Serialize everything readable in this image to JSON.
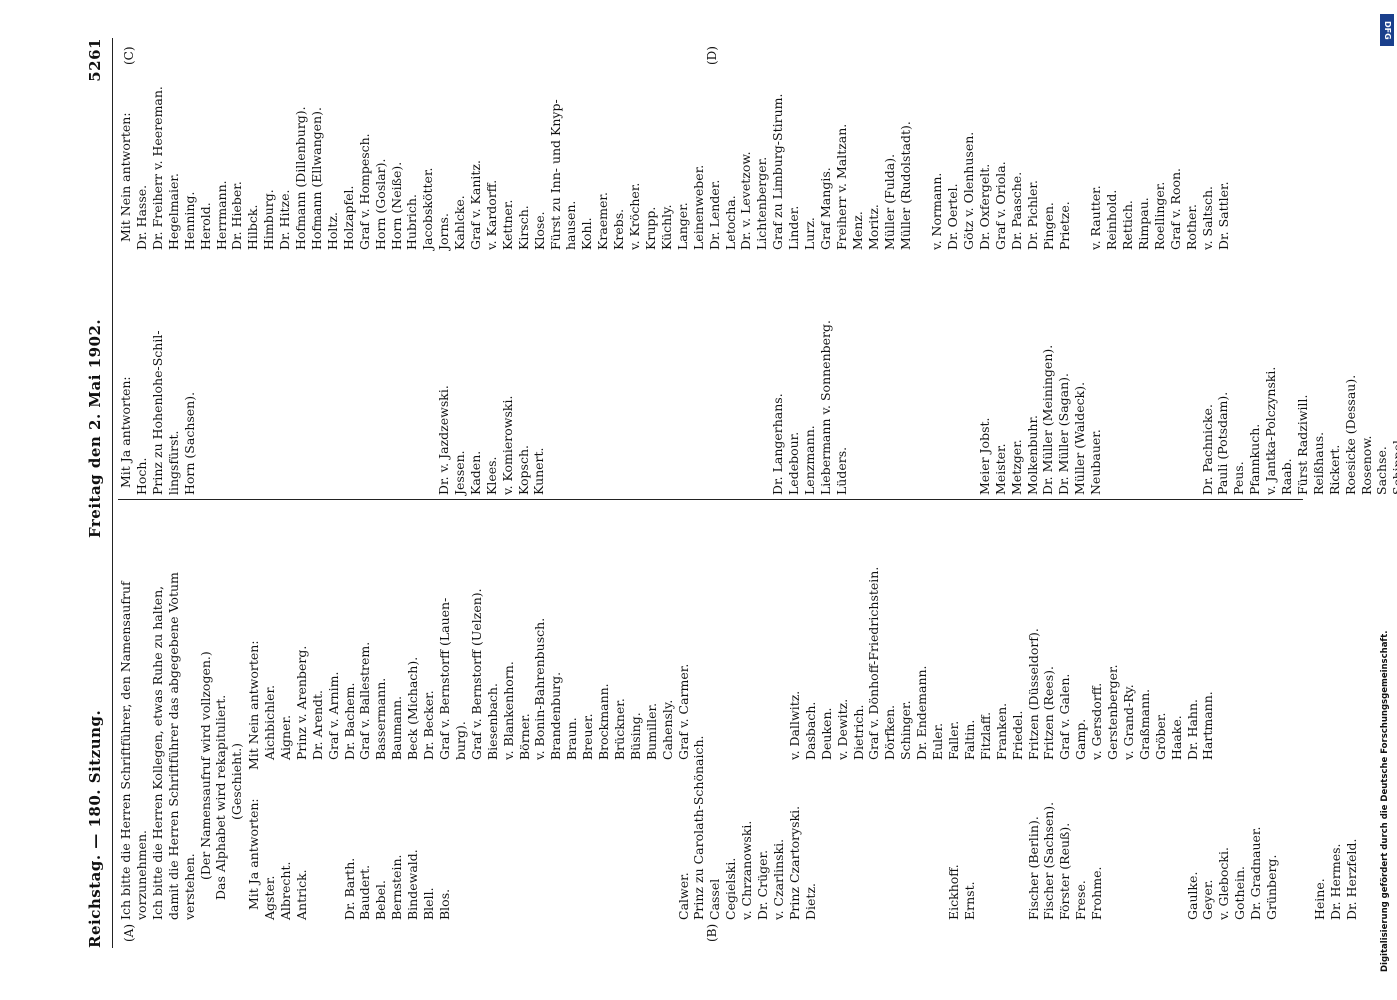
{
  "header": {
    "left": "Reichstag. — 180. Sitzung.",
    "middle": "Freitag den 2. Mai 1902.",
    "page_number": "5261"
  },
  "margin_marks": {
    "a": "(A)",
    "b": "(B)",
    "c": "(C)",
    "d": "(D)"
  },
  "col1": {
    "intro": [
      "Ich bitte die Herren Schriftführer, den Namensaufruf",
      "vorzunehmen.",
      "Ich bitte die Herren Kollegen, etwas Ruhe zu halten,",
      "damit die Herren Schriftführer das abgegebene Votum",
      "verstehen.",
      "(Der Namensaufruf wird vollzogen.)",
      "Das Alphabet wird rekapituliert.",
      "(Geschieht.)"
    ],
    "ja_heading": "Mit Ja antworten:",
    "nein_heading": "Mit Nein antworten:",
    "ja": [
      "Agster.",
      "Albrecht.",
      "Antrick.",
      "",
      "",
      "Dr. Barth.",
      "Baudert.",
      "Bebel.",
      "Bernstein.",
      "Bindewald.",
      "Blell.",
      "Blos.",
      "",
      "",
      "",
      "",
      "",
      "",
      "",
      "",
      "",
      "",
      "",
      "",
      "",
      "",
      "Calwer.",
      "Prinz zu Carolath-Schönaich.",
      "Cassel",
      "Cegielski.",
      "v. Chrzanowski.",
      "Dr. Crüger.",
      "v. Czarlinski.",
      "Prinz Czartoryski.",
      "Dietz.",
      "",
      "",
      "",
      "",
      "",
      "",
      "",
      "",
      "Eickhoff.",
      "Ernst.",
      "",
      "",
      "",
      "Fischer (Berlin).",
      "Fischer (Sachsen).",
      "Förster (Reuß).",
      "Frese.",
      "Frohme.",
      "",
      "",
      "",
      "",
      "",
      "Gaulke.",
      "Geyer.",
      "v. Glebocki.",
      "Gothein.",
      "Dr. Gradnauer.",
      "Grünberg.",
      "",
      "",
      "Heine.",
      "Dr. Hermes.",
      "Dr. Herzfeld."
    ],
    "nein": [
      "Aichbichler.",
      "Aigner.",
      "Prinz v. Arenberg.",
      "Dr. Arendt.",
      "Graf v. Arnim.",
      "Dr. Bachem.",
      "Graf v. Ballestrem.",
      "Bassermann.",
      "Baumann.",
      "Beck (Michach).",
      "Dr. Becker.",
      "Graf v. Bernstorff (Lauen-",
      "burg).",
      "Graf v. Bernstorff (Uelzen).",
      "Biesenbach.",
      "v. Blankenhorn.",
      "Börner.",
      "v. Bonin-Bahrenbusch.",
      "Brandenburg.",
      "Braun.",
      "Breuer.",
      "Brockmann.",
      "Brückner.",
      "Büsing.",
      "Bumiller.",
      "Cahensly.",
      "Graf v. Carmer.",
      "",
      "",
      "",
      "",
      "",
      "",
      "v. Dallwitz.",
      "Dasbach.",
      "Deuken.",
      "v. Dewitz.",
      "Dietrich.",
      "Graf v. Dönhoff-Friedrichstein.",
      "Dörfken.",
      "Schinger.",
      "Dr. Endemann.",
      "Euler.",
      "Faller.",
      "Faltin.",
      "Fitzlaff.",
      "Franken.",
      "Friedel.",
      "Fritzen (Düsseldorf).",
      "Fritzen (Rees).",
      "Graf v. Galen.",
      "Gamp.",
      "v. Gersdorff.",
      "Gerstenberger.",
      "v. Grand-Ry.",
      "Graßmann.",
      "Gröber.",
      "Haake.",
      "Dr. Hahn.",
      "Hartmann."
    ]
  },
  "col2": {
    "ja_heading": "Mit Ja antworten:",
    "ja_upper": [
      "Hoch.",
      "Prinz zu Hohenlohe-Schil-",
      "lingsfürst.",
      "Horn (Sachsen)."
    ],
    "ja_lower": [
      "Dr. v. Jazdzewski.",
      "Jessen.",
      "Kaden.",
      "Klees.",
      "v. Komierowski.",
      "Kopsch.",
      "Kunert.",
      "",
      "",
      "",
      "",
      "",
      "",
      "",
      "",
      "",
      "",
      "",
      "",
      "",
      "",
      "Dr. Langerhans.",
      "Ledebour.",
      "Lenzmann.",
      "Liebermann v. Sonnenberg.",
      "Lüders.",
      "",
      "",
      "",
      "",
      "",
      "",
      "",
      "",
      "Meier Jobst.",
      "Meister.",
      "Metzger.",
      "Molkenbuhr.",
      "Dr. Müller (Meiningen).",
      "Dr. Müller (Sagan).",
      "Müller (Waldeck).",
      "Neubauer.",
      "",
      "",
      "",
      "",
      "",
      "",
      "Dr. Pachnicke.",
      "Pauli (Potsdam).",
      "Peus.",
      "Pfannkuch.",
      "v. Jantka-Polczynski.",
      "Raab.",
      "Fürst Radziwill.",
      "Reißhaus.",
      "Rickert.",
      "Roesicke (Dessau).",
      "Rosenow.",
      "Sachse.",
      "Schippel."
    ]
  },
  "col3": {
    "nein_heading": "Mit Nein antworten:",
    "nein": [
      "Dr. Hasse.",
      "Dr. Freiherr v. Heereman.",
      "Hegelmaier.",
      "Henning.",
      "Herold.",
      "Herrmann.",
      "Dr. Hieber.",
      "Hilbck.",
      "Himburg.",
      "Dr. Hitze.",
      "Hofmann (Dillenburg).",
      "Hofmann (Ellwangen).",
      "Holtz.",
      "Holzapfel.",
      "Graf v. Hompesch.",
      "Horn (Goslar).",
      "Horn (Neiße).",
      "Hubrich.",
      "Jacobskötter.",
      "Jorns.",
      "Kahlcke.",
      "Graf v. Kanitz.",
      "v. Kardorff.",
      "Kettner.",
      "Kirsch.",
      "Klose.",
      "Fürst zu Inn- und Knyp-",
      "hausen.",
      "Kohl.",
      "Kraemer.",
      "Krebs.",
      "v. Kröcher.",
      "Krupp.",
      "Küchly.",
      "Langer.",
      "Leinenweber.",
      "Dr. Lender.",
      "Letocha.",
      "Dr. v. Levetzow.",
      "Lichtenberger.",
      "Graf zu Limburg-Stirum.",
      "Linder.",
      "Lurz.",
      "Graf Mangis.",
      "Freiherr v. Maltzan.",
      "Menz.",
      "Moritz.",
      "Müller (Fulda).",
      "Müller (Rudolstadt).",
      "",
      "v. Normann.",
      "Dr. Oertel.",
      "Götz v. Olenhusen.",
      "Dr. Oxfergelt.",
      "Graf v. Oriola.",
      "Dr. Paasche.",
      "Dr. Pichler.",
      "Pingen.",
      "Prietze.",
      "",
      "v. Rautter.",
      "Reinhold.",
      "Rettich.",
      "Rimpau.",
      "Roellinger.",
      "Graf v. Roon.",
      "Rother.",
      "v. Saltsch.",
      "Dr. Sattler."
    ]
  },
  "digitization_note": "Digitalisierung gefördert durch die Deutsche Forschungsgemeinschaft.",
  "dfg_logo": "DFG"
}
